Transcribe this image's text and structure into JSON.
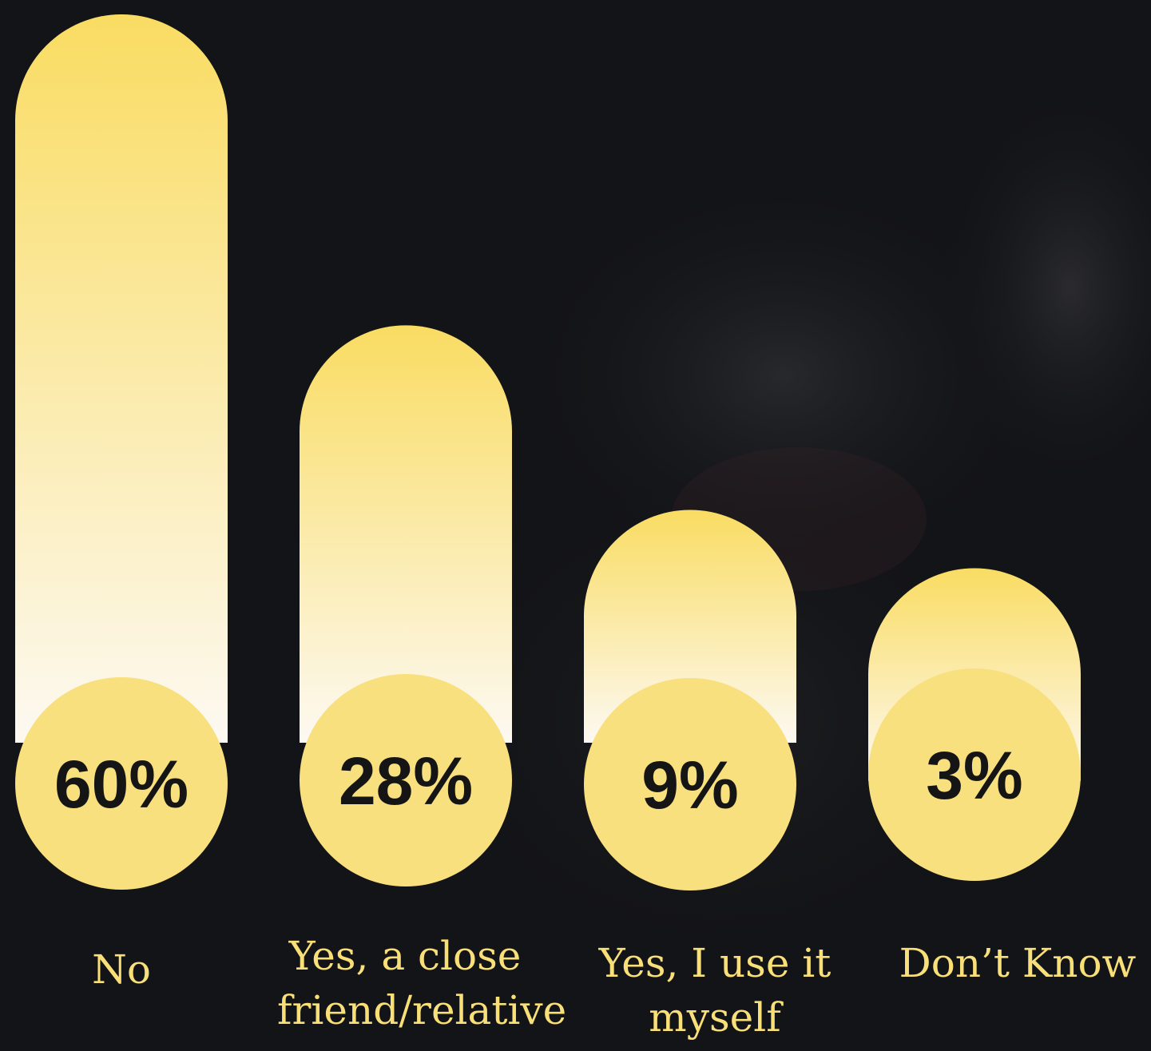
{
  "colors": {
    "background": "#131417",
    "bar_top": "#f9dc62",
    "bar_bottom": "#fdf9f2",
    "bubble": "#f9e07e",
    "value_text": "#151515",
    "label_text": "#f8df78"
  },
  "chart_data": {
    "type": "bar",
    "categories": [
      "No",
      "Yes, a close friend/relative",
      "Yes, I use it myself",
      "Don’t Know"
    ],
    "values": [
      60,
      28,
      9,
      3
    ],
    "value_labels": [
      "60%",
      "28%",
      "9%",
      "3%"
    ],
    "unit": "%",
    "title": "",
    "xlabel": "",
    "ylabel": "",
    "ylim": [
      0,
      60
    ],
    "grid": false,
    "legend": "none"
  },
  "labels": {
    "cat0": "No",
    "cat1_line1": "Yes, a close",
    "cat1_line2": "friend/relative",
    "cat2_line1": "Yes, I use it",
    "cat2_line2": "myself",
    "cat3": "Don’t Know"
  }
}
